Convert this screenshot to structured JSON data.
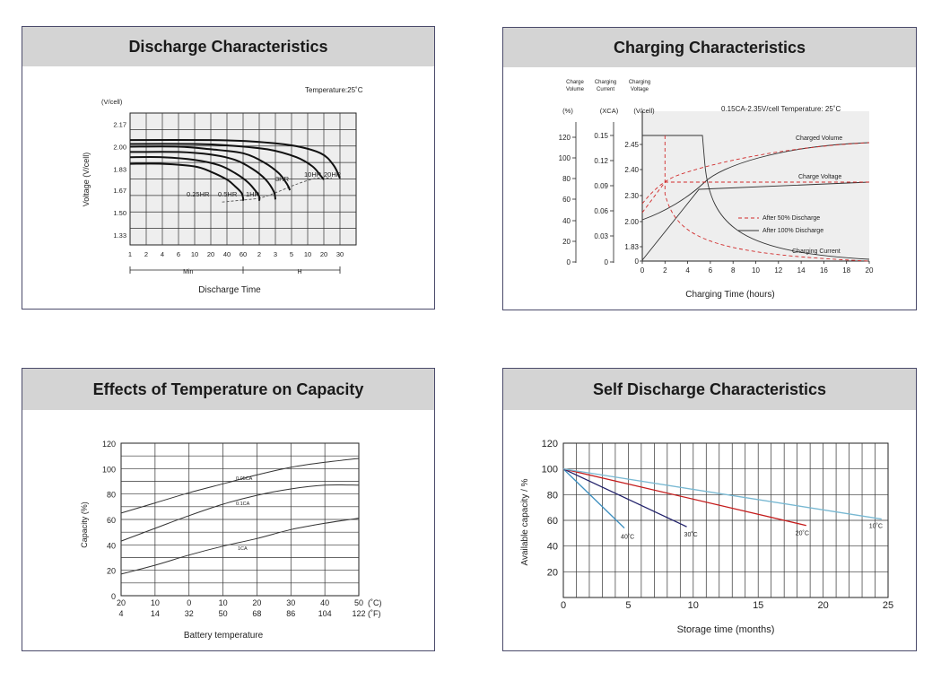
{
  "chart_data": [
    {
      "id": "discharge",
      "type": "line",
      "title": "Discharge Characteristics",
      "xlabel": "Discharge Time",
      "ylabel": "Voltage (V/cell)",
      "y_unit": "(V/cell)",
      "annotation": "Temperature:25˚C",
      "y_ticks": [
        "2.17",
        "2.00",
        "1.83",
        "1.67",
        "1.50",
        "1.33"
      ],
      "x_ticks": [
        "1",
        "2",
        "4",
        "6",
        "10",
        "20",
        "40",
        "60",
        "2",
        "3",
        "5",
        "10",
        "20",
        "30"
      ],
      "x_groups": [
        "Min",
        "H"
      ],
      "series": [
        {
          "name": "0.25HR",
          "label": "0.25HR",
          "x": [
            0,
            2,
            4,
            5,
            6,
            6.5,
            6.9,
            7.0,
            7.0
          ],
          "y": [
            1.87,
            1.87,
            1.85,
            1.81,
            1.75,
            1.7,
            1.65,
            1.61,
            1.59
          ]
        },
        {
          "name": "0.5HR",
          "label": "0.5HR",
          "x": [
            0,
            2,
            4,
            5.5,
            6.5,
            7.3,
            7.8,
            8.0,
            8.0
          ],
          "y": [
            1.92,
            1.92,
            1.9,
            1.86,
            1.8,
            1.73,
            1.66,
            1.62,
            1.59
          ]
        },
        {
          "name": "1HR",
          "label": "1HR",
          "x": [
            0,
            3,
            5,
            6.5,
            7.6,
            8.4,
            8.9,
            9.0
          ],
          "y": [
            1.96,
            1.96,
            1.94,
            1.9,
            1.83,
            1.75,
            1.66,
            1.6
          ]
        },
        {
          "name": "3HR",
          "label": "3HR",
          "x": [
            0,
            3,
            5,
            7,
            8.3,
            9.2,
            9.7,
            9.9
          ],
          "y": [
            2.0,
            2.0,
            1.98,
            1.95,
            1.88,
            1.8,
            1.72,
            1.67
          ]
        },
        {
          "name": "10HR",
          "label": "10HR",
          "x": [
            0,
            4,
            6,
            8.5,
            10.3,
            11.3,
            11.8,
            12.0
          ],
          "y": [
            2.02,
            2.02,
            2.01,
            1.98,
            1.92,
            1.85,
            1.78,
            1.75
          ]
        },
        {
          "name": "20HR",
          "label": "20HR",
          "x": [
            0,
            5,
            7.5,
            10,
            11.8,
            12.6,
            13.0
          ],
          "y": [
            2.05,
            2.05,
            2.04,
            2.01,
            1.95,
            1.86,
            1.76
          ]
        }
      ],
      "cutoff": {
        "x": [
          5.7,
          6.5,
          8,
          9,
          10.2,
          11.5,
          12.5
        ],
        "y": [
          1.58,
          1.59,
          1.61,
          1.65,
          1.71,
          1.76,
          1.76
        ]
      }
    },
    {
      "id": "charging",
      "type": "line",
      "title": "Charging Characteristics",
      "xlabel": "Charging Time (hours)",
      "header_labels": [
        "Charge Volume",
        "Charging Current",
        "Charging Voltage"
      ],
      "axis_units": [
        "(%)",
        "(XCA)",
        "(V/cell)"
      ],
      "annotation": "0.15CA-2.35V/cell  Temperature: 25˚C",
      "y1_ticks": [
        "120",
        "100",
        "80",
        "60",
        "40",
        "20",
        "0"
      ],
      "y2_ticks": [
        "0.15",
        "0.12",
        "0.09",
        "0.06",
        "0.03",
        "0"
      ],
      "y3_ticks": [
        "2.45",
        "2.40",
        "2.30",
        "2.00",
        "1.83",
        "0"
      ],
      "x_ticks": [
        "0",
        "2",
        "4",
        "6",
        "8",
        "10",
        "12",
        "14",
        "16",
        "18",
        "20"
      ],
      "curve_labels": [
        "Charged Volume",
        "Charge Voltage",
        "Charging Current"
      ],
      "legend": [
        "After 50% Discharge",
        "After 100% Discharge"
      ]
    },
    {
      "id": "temperature",
      "type": "line",
      "title": "Effects of Temperature on Capacity",
      "xlabel": "Battery temperature",
      "ylabel": "Capacity (%)",
      "y_ticks": [
        120,
        100,
        80,
        60,
        40,
        20,
        0
      ],
      "x_ticks_c": [
        "20",
        "10",
        "0",
        "10",
        "20",
        "30",
        "40",
        "50"
      ],
      "x_ticks_f": [
        "4",
        "14",
        "32",
        "50",
        "68",
        "86",
        "104",
        "122"
      ],
      "unit_c": "(˚C)",
      "unit_f": "(˚F)",
      "ylim": [
        0,
        120
      ],
      "series": [
        {
          "name": "0.05CA",
          "label": "0.05CA",
          "values": [
            65,
            73,
            81,
            88,
            95,
            101,
            105,
            108
          ]
        },
        {
          "name": "0.1CA",
          "label": "0.1CA",
          "values": [
            43,
            53,
            63,
            72,
            79,
            84,
            87,
            87
          ]
        },
        {
          "name": "1CA",
          "label": "1CA",
          "values": [
            17,
            24,
            32,
            39,
            45,
            52,
            57,
            61
          ]
        }
      ]
    },
    {
      "id": "self_discharge",
      "type": "line",
      "title": "Self Discharge Characteristics",
      "xlabel": "Storage time (months)",
      "ylabel": "Available capacity / %",
      "ylim": [
        0,
        120
      ],
      "xlim": [
        0,
        25
      ],
      "y_ticks": [
        "120",
        "100",
        "80",
        "60",
        "40",
        "20"
      ],
      "x_ticks": [
        "0",
        "5",
        "10",
        "15",
        "20",
        "25"
      ],
      "series": [
        {
          "name": "40˚C",
          "label": "40˚C",
          "color": "#3d8fbf",
          "x": [
            0,
            4.7
          ],
          "y": [
            100,
            54
          ]
        },
        {
          "name": "30˚C",
          "label": "30˚C",
          "color": "#20206a",
          "x": [
            0,
            9.5
          ],
          "y": [
            100,
            55
          ]
        },
        {
          "name": "20˚C",
          "label": "20˚C",
          "color": "#c41c1c",
          "x": [
            0,
            18.7
          ],
          "y": [
            100,
            56
          ]
        },
        {
          "name": "10˚C",
          "label": "10˚C",
          "color": "#78b8d2",
          "x": [
            0,
            24.5
          ],
          "y": [
            100,
            61
          ]
        }
      ]
    }
  ]
}
